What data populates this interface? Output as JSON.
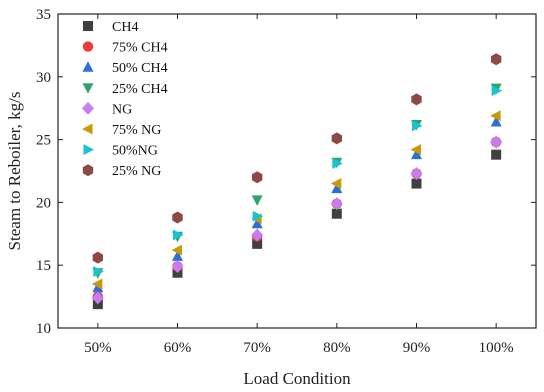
{
  "chart_data": {
    "type": "scatter",
    "title": "",
    "xlabel": "Load Condition",
    "ylabel": "Steam to Reboiler, kg/s",
    "categories": [
      "50%",
      "60%",
      "70%",
      "80%",
      "90%",
      "100%"
    ],
    "ylim": [
      10,
      35
    ],
    "yticks": [
      10,
      15,
      20,
      25,
      30,
      35
    ],
    "grid": false,
    "legend_position": "top-left",
    "series": [
      {
        "name": "CH4",
        "marker": "square",
        "color": "#404040",
        "values": [
          11.9,
          14.4,
          16.7,
          19.1,
          21.5,
          23.8
        ]
      },
      {
        "name": "75% CH4",
        "marker": "circle",
        "color": "#f03c3c",
        "values": [
          12.5,
          14.9,
          17.3,
          19.9,
          22.3,
          24.8
        ]
      },
      {
        "name": "50% CH4",
        "marker": "triangle-up",
        "color": "#2d6fd6",
        "values": [
          13.2,
          15.7,
          18.3,
          21.1,
          23.8,
          26.4
        ]
      },
      {
        "name": "25% CH4",
        "marker": "triangle-down",
        "color": "#2ea36b",
        "values": [
          14.4,
          17.3,
          20.2,
          23.2,
          26.2,
          29.1
        ]
      },
      {
        "name": "NG",
        "marker": "diamond",
        "color": "#c77cf0",
        "values": [
          12.4,
          14.9,
          17.4,
          19.9,
          22.3,
          24.8
        ]
      },
      {
        "name": "75% NG",
        "marker": "triangle-left",
        "color": "#c89a0a",
        "values": [
          13.5,
          16.2,
          18.7,
          21.5,
          24.2,
          26.9
        ]
      },
      {
        "name": "50%NG",
        "marker": "triangle-right",
        "color": "#19c3cf",
        "values": [
          14.5,
          17.4,
          18.9,
          23.1,
          26.1,
          28.9
        ]
      },
      {
        "name": "25% NG",
        "marker": "hexagon",
        "color": "#8b4a45",
        "values": [
          15.6,
          18.8,
          22.0,
          25.1,
          28.2,
          31.4
        ]
      }
    ]
  }
}
